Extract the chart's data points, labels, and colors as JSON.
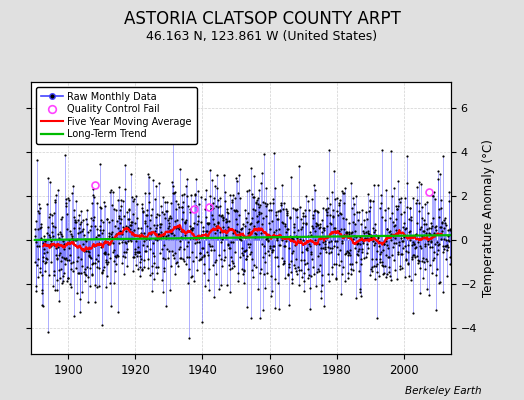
{
  "title": "ASTORIA CLATSOP COUNTY ARPT",
  "subtitle": "46.163 N, 123.861 W (United States)",
  "ylabel": "Temperature Anomaly (°C)",
  "xlabel_ticks": [
    1900,
    1920,
    1940,
    1960,
    1980,
    2000
  ],
  "ylim": [
    -5.2,
    7.2
  ],
  "xlim": [
    1889,
    2014
  ],
  "yticks": [
    -4,
    -2,
    0,
    2,
    4,
    6
  ],
  "background_color": "#e0e0e0",
  "plot_bg_color": "#ffffff",
  "raw_line_color": "#4444ff",
  "raw_marker_color": "#000000",
  "moving_avg_color": "#ff0000",
  "trend_color": "#00bb00",
  "qc_fail_color": "#ff44ff",
  "grid_color": "#cccccc",
  "title_fontsize": 12,
  "subtitle_fontsize": 9,
  "seed": 12,
  "start_year": 1890,
  "end_year": 2013,
  "noise_std": 1.3
}
